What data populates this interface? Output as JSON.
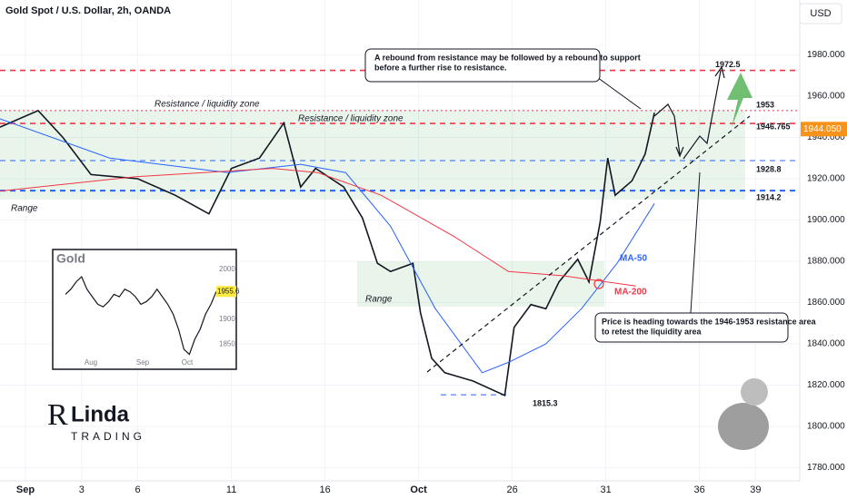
{
  "chart_data": {
    "type": "line",
    "title": "Gold Spot / U.S. Dollar, 2h, OANDA",
    "currency": "USD",
    "xlim": [
      -1.36,
      41.36
    ],
    "xticks": [
      {
        "value": 0,
        "label": "Sep"
      },
      3,
      6,
      11,
      16,
      {
        "value": 21,
        "label": "Oct"
      },
      26,
      31,
      36,
      39
    ],
    "ylim": [
      1773.6,
      2006.6
    ],
    "yticks": [
      {
        "value": 1780,
        "label": "1780.000"
      },
      {
        "value": 1800,
        "label": "1800.000"
      },
      {
        "value": 1820,
        "label": "1820.000"
      },
      {
        "value": 1840,
        "label": "1840.000"
      },
      {
        "value": 1860,
        "label": "1860.000"
      },
      {
        "value": 1880,
        "label": "1880.000"
      },
      {
        "value": 1900,
        "label": "1900.000"
      },
      {
        "value": 1920,
        "label": "1920.000"
      },
      {
        "value": 1940,
        "label": "1940.000"
      },
      {
        "value": 1960,
        "label": "1960.000"
      },
      {
        "value": 1980,
        "label": "1980.000"
      }
    ],
    "grid": true,
    "series": [
      {
        "color": "#131722",
        "x": [
          -1.36,
          0.68,
          2.0,
          3.5,
          6,
          8,
          9.8,
          11,
          12.5,
          13.8,
          14.7,
          15.5,
          17,
          18,
          18.8,
          19.5,
          20.7,
          21.1,
          21.7,
          22.4,
          23.9,
          25.6,
          26.1,
          27,
          27.8,
          28.5,
          29.5,
          30.1,
          30.7,
          31.1,
          31.5,
          32.4,
          33.1,
          33.6
        ],
        "values": [
          1945,
          1953,
          1940,
          1922,
          1920,
          1912,
          1903,
          1925,
          1930,
          1947,
          1916,
          1925,
          1916,
          1901,
          1879,
          1875,
          1879,
          1855,
          1833,
          1826,
          1822,
          1815,
          1848,
          1859,
          1857,
          1870,
          1881,
          1870,
          1899,
          1930,
          1912,
          1919,
          1932,
          1952
        ]
      },
      {
        "name": "MA-50",
        "color": "#2962ff",
        "x": [
          -1.36,
          4.5,
          10.8,
          14.7,
          17.1,
          19.5,
          21.9,
          24.4,
          25.8,
          27.8,
          29.7,
          31.6,
          33.6
        ],
        "values": [
          1949,
          1930,
          1923,
          1927,
          1923,
          1897,
          1857,
          1826,
          1831,
          1840,
          1857,
          1879,
          1908
        ]
      },
      {
        "name": "MA-200",
        "color": "#f23645",
        "x": [
          -1.36,
          5.9,
          13.2,
          15.6,
          19,
          22.9,
          25.8,
          28.7,
          32.6
        ],
        "values": [
          1914,
          1921,
          1925,
          1923,
          1912,
          1892,
          1875,
          1873,
          1868
        ]
      }
    ],
    "levels": [
      {
        "value": 1972.5,
        "color": "#f23645"
      },
      {
        "value": 1953,
        "color": "#f23645"
      },
      {
        "value": 1946.765,
        "color": "#f23645"
      },
      {
        "value": 1928.8,
        "color": "#2962ff"
      },
      {
        "value": 1914.2,
        "color": "#2962ff"
      },
      {
        "value": 1815.3,
        "color": "#2962ff"
      }
    ],
    "last_price": {
      "value": 1944.05,
      "label": "1944.050",
      "color": "#f7931a"
    },
    "zone_labels": [
      "Resistance / liquidity zone",
      "Resistance / liquidity zone",
      "Range",
      "Range"
    ],
    "annotations": [
      [
        "A rebound from resistance may be followed by a rebound to support",
        "before a further rise to resistance."
      ],
      [
        "Price is heading towards the 1946-1953 resistance area",
        "to retest the liquidity area"
      ]
    ],
    "inset": {
      "title": "Gold",
      "categories": [
        "Aug",
        "Sep",
        "Oct"
      ],
      "ylim": [
        1822,
        2034
      ],
      "yticks": [
        1850,
        1900,
        2000
      ],
      "values": [
        1950,
        1960,
        1975,
        1985,
        1960,
        1945,
        1930,
        1925,
        1935,
        1950,
        1945,
        1960,
        1955,
        1945,
        1930,
        1935,
        1945,
        1960,
        1945,
        1930,
        1910,
        1880,
        1840,
        1830,
        1860,
        1880,
        1910,
        1930,
        1955.6
      ],
      "last": 1955.6,
      "color": "#131722"
    },
    "logo": {
      "mark": "R",
      "name": "Linda",
      "sub": "TRADING"
    }
  }
}
